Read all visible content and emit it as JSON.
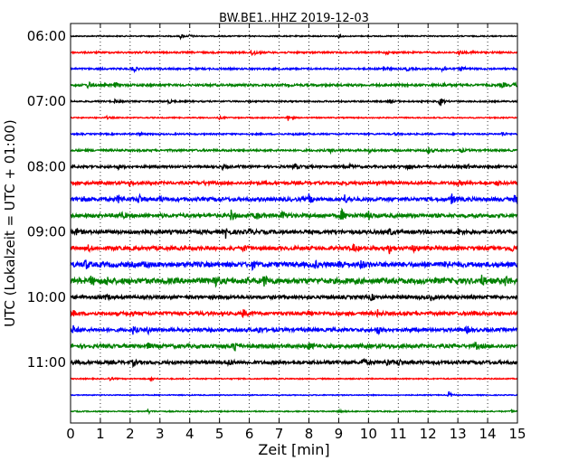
{
  "chart_data": {
    "type": "line",
    "title": "BW.BE1..HHZ 2019-12-03",
    "xlabel": "Zeit  [min]",
    "ylabel": "UTC (Lokalzeit = UTC + 01:00)",
    "xlim": [
      0,
      15
    ],
    "x_ticks": [
      0,
      1,
      2,
      3,
      4,
      5,
      6,
      7,
      8,
      9,
      10,
      11,
      12,
      13,
      14,
      15
    ],
    "x_tick_labels": [
      "0",
      "1",
      "2",
      "3",
      "4",
      "5",
      "6",
      "7",
      "8",
      "9",
      "10",
      "11",
      "12",
      "13",
      "14",
      "15"
    ],
    "y_tick_labels": [
      {
        "row": 0,
        "label": "06:00"
      },
      {
        "row": 4,
        "label": "07:00"
      },
      {
        "row": 8,
        "label": "08:00"
      },
      {
        "row": 12,
        "label": "09:00"
      },
      {
        "row": 16,
        "label": "10:00"
      },
      {
        "row": 20,
        "label": "11:00"
      }
    ],
    "grid": {
      "x": "dotted",
      "y": false
    },
    "colors": [
      "#000000",
      "#ff0000",
      "#0000ff",
      "#008000"
    ],
    "series": [
      {
        "start": "06:00",
        "color": "#000000",
        "noise": 0.6,
        "events": [
          [
            3.7,
            2.5
          ],
          [
            4.0,
            1.5
          ],
          [
            9.0,
            1.5
          ]
        ]
      },
      {
        "start": "06:15",
        "color": "#ff0000",
        "noise": 0.9,
        "events": [
          [
            6.1,
            5.0
          ],
          [
            10.6,
            1.5
          ],
          [
            13.0,
            3.0
          ],
          [
            13.5,
            2.0
          ]
        ]
      },
      {
        "start": "06:30",
        "color": "#0000ff",
        "noise": 0.9,
        "events": [
          [
            2.1,
            3.5
          ],
          [
            10.5,
            3.5
          ],
          [
            11.3,
            2.0
          ],
          [
            12.5,
            4.5
          ],
          [
            13.1,
            2.5
          ]
        ]
      },
      {
        "start": "06:45",
        "color": "#008000",
        "noise": 1.2,
        "events": [
          [
            0.6,
            4.0
          ],
          [
            1.5,
            2.5
          ],
          [
            12.5,
            2.0
          ],
          [
            14.5,
            2.5
          ],
          [
            14.9,
            2.5
          ]
        ]
      },
      {
        "start": "07:00",
        "color": "#000000",
        "noise": 0.8,
        "events": [
          [
            1.5,
            2.0
          ],
          [
            3.3,
            2.0
          ],
          [
            10.7,
            2.0
          ],
          [
            12.4,
            4.5
          ]
        ]
      },
      {
        "start": "07:15",
        "color": "#ff0000",
        "noise": 0.6,
        "events": [
          [
            1.2,
            1.5
          ],
          [
            5.0,
            1.5
          ],
          [
            7.3,
            3.5
          ]
        ]
      },
      {
        "start": "07:30",
        "color": "#0000ff",
        "noise": 0.8,
        "events": [
          [
            2.3,
            2.0
          ],
          [
            7.5,
            1.5
          ],
          [
            10.9,
            1.5
          ],
          [
            14.5,
            2.5
          ]
        ]
      },
      {
        "start": "07:45",
        "color": "#008000",
        "noise": 1.1,
        "events": [
          [
            8.7,
            2.5
          ],
          [
            10.0,
            2.0
          ],
          [
            12.0,
            3.5
          ],
          [
            13.1,
            2.0
          ]
        ]
      },
      {
        "start": "08:00",
        "color": "#000000",
        "noise": 1.3,
        "events": [
          [
            1.6,
            2.0
          ],
          [
            5.1,
            2.0
          ],
          [
            7.5,
            4.0
          ],
          [
            9.4,
            2.0
          ],
          [
            11.3,
            3.5
          ],
          [
            13.3,
            2.5
          ]
        ]
      },
      {
        "start": "08:15",
        "color": "#ff0000",
        "noise": 1.6,
        "events": [
          [
            2.0,
            2.0
          ],
          [
            4.5,
            1.5
          ],
          [
            9.1,
            2.0
          ],
          [
            13.0,
            2.5
          ],
          [
            14.3,
            2.5
          ]
        ]
      },
      {
        "start": "08:30",
        "color": "#0000ff",
        "noise": 2.0,
        "events": [
          [
            0.4,
            4.0
          ],
          [
            1.6,
            4.0
          ],
          [
            2.3,
            5.0
          ],
          [
            3.0,
            3.0
          ],
          [
            8.0,
            5.0
          ],
          [
            9.2,
            4.0
          ],
          [
            12.8,
            5.0
          ],
          [
            14.9,
            4.0
          ]
        ]
      },
      {
        "start": "08:45",
        "color": "#008000",
        "noise": 2.0,
        "events": [
          [
            1.7,
            3.0
          ],
          [
            5.4,
            6.0
          ],
          [
            6.2,
            4.5
          ],
          [
            7.1,
            5.0
          ],
          [
            9.1,
            6.5
          ],
          [
            10.0,
            4.0
          ]
        ]
      },
      {
        "start": "09:00",
        "color": "#000000",
        "noise": 2.0,
        "events": [
          [
            0.2,
            3.0
          ],
          [
            2.4,
            3.5
          ],
          [
            5.2,
            6.0
          ],
          [
            6.0,
            3.5
          ],
          [
            10.7,
            3.5
          ],
          [
            13.0,
            3.0
          ]
        ]
      },
      {
        "start": "09:15",
        "color": "#ff0000",
        "noise": 2.0,
        "events": [
          [
            0.6,
            3.0
          ],
          [
            5.8,
            3.0
          ],
          [
            9.5,
            3.5
          ],
          [
            10.7,
            5.0
          ],
          [
            11.5,
            4.0
          ],
          [
            14.8,
            3.5
          ]
        ]
      },
      {
        "start": "09:30",
        "color": "#0000ff",
        "noise": 2.6,
        "events": [
          [
            0.5,
            5.0
          ],
          [
            2.5,
            3.5
          ],
          [
            6.1,
            3.5
          ],
          [
            8.2,
            3.0
          ],
          [
            9.0,
            7.0
          ],
          [
            9.7,
            5.0
          ],
          [
            12.6,
            4.5
          ]
        ]
      },
      {
        "start": "09:45",
        "color": "#008000",
        "noise": 3.0,
        "events": [
          [
            0.7,
            4.5
          ],
          [
            1.2,
            3.5
          ],
          [
            4.8,
            7.0
          ],
          [
            6.5,
            5.0
          ],
          [
            13.8,
            4.5
          ],
          [
            14.6,
            5.0
          ]
        ]
      },
      {
        "start": "10:00",
        "color": "#000000",
        "noise": 1.8,
        "events": [
          [
            1.2,
            2.5
          ],
          [
            10.1,
            3.0
          ],
          [
            12.1,
            2.5
          ]
        ]
      },
      {
        "start": "10:15",
        "color": "#ff0000",
        "noise": 1.8,
        "events": [
          [
            0.1,
            2.5
          ],
          [
            2.0,
            2.5
          ],
          [
            5.8,
            4.0
          ],
          [
            8.0,
            3.0
          ],
          [
            10.3,
            3.5
          ],
          [
            13.5,
            2.5
          ]
        ]
      },
      {
        "start": "10:30",
        "color": "#0000ff",
        "noise": 1.8,
        "events": [
          [
            0.1,
            4.5
          ],
          [
            2.1,
            4.0
          ],
          [
            2.6,
            3.5
          ],
          [
            6.3,
            4.0
          ],
          [
            10.3,
            4.5
          ],
          [
            13.3,
            3.0
          ]
        ]
      },
      {
        "start": "10:45",
        "color": "#008000",
        "noise": 2.0,
        "events": [
          [
            2.6,
            2.5
          ],
          [
            5.5,
            6.5
          ],
          [
            8.0,
            3.5
          ],
          [
            13.6,
            3.0
          ]
        ]
      },
      {
        "start": "11:00",
        "color": "#000000",
        "noise": 1.8,
        "events": [
          [
            2.1,
            3.0
          ],
          [
            5.3,
            3.0
          ],
          [
            9.8,
            4.0
          ],
          [
            10.6,
            4.5
          ],
          [
            11.0,
            3.5
          ]
        ]
      },
      {
        "start": "11:15",
        "color": "#ff0000",
        "noise": 0.6,
        "events": [
          [
            1.3,
            1.5
          ],
          [
            2.7,
            1.5
          ]
        ]
      },
      {
        "start": "11:30",
        "color": "#0000ff",
        "noise": 0.5,
        "events": [
          [
            12.7,
            3.5
          ]
        ]
      },
      {
        "start": "11:45",
        "color": "#008000",
        "noise": 0.6,
        "events": [
          [
            2.6,
            2.0
          ],
          [
            9.0,
            1.5
          ],
          [
            14.8,
            1.5
          ]
        ]
      }
    ]
  }
}
